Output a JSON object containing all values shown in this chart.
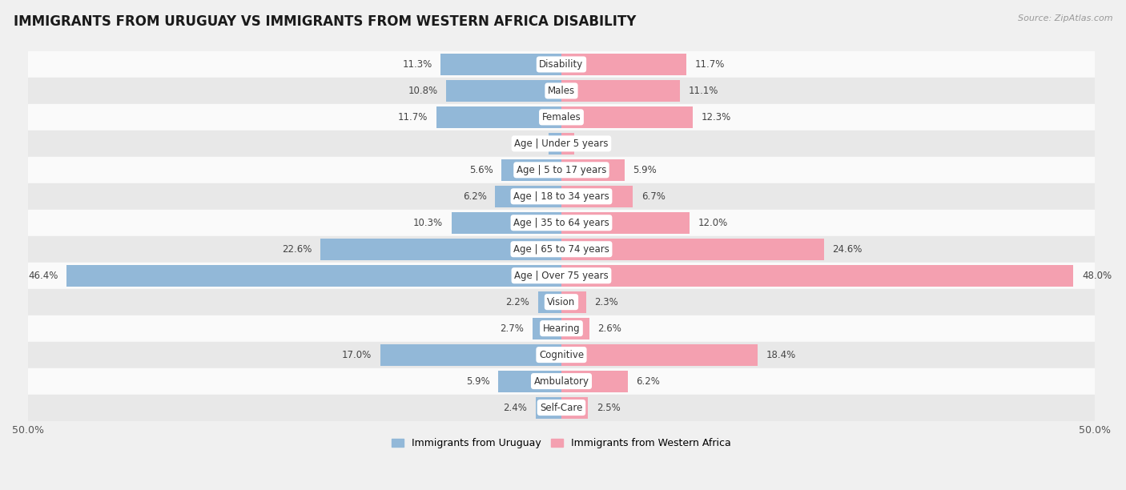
{
  "title": "IMMIGRANTS FROM URUGUAY VS IMMIGRANTS FROM WESTERN AFRICA DISABILITY",
  "source": "Source: ZipAtlas.com",
  "categories": [
    "Disability",
    "Males",
    "Females",
    "Age | Under 5 years",
    "Age | 5 to 17 years",
    "Age | 18 to 34 years",
    "Age | 35 to 64 years",
    "Age | 65 to 74 years",
    "Age | Over 75 years",
    "Vision",
    "Hearing",
    "Cognitive",
    "Ambulatory",
    "Self-Care"
  ],
  "uruguay_values": [
    11.3,
    10.8,
    11.7,
    1.2,
    5.6,
    6.2,
    10.3,
    22.6,
    46.4,
    2.2,
    2.7,
    17.0,
    5.9,
    2.4
  ],
  "western_africa_values": [
    11.7,
    11.1,
    12.3,
    1.2,
    5.9,
    6.7,
    12.0,
    24.6,
    48.0,
    2.3,
    2.6,
    18.4,
    6.2,
    2.5
  ],
  "uruguay_color": "#92b8d8",
  "western_africa_color": "#f4a0b0",
  "background_color": "#f0f0f0",
  "row_bg_light": "#fafafa",
  "row_bg_dark": "#e8e8e8",
  "axis_limit": 50.0,
  "bar_height": 0.82,
  "legend_label_uruguay": "Immigrants from Uruguay",
  "legend_label_western_africa": "Immigrants from Western Africa",
  "title_fontsize": 12,
  "label_fontsize": 9,
  "value_fontsize": 8.5,
  "category_fontsize": 8.5
}
